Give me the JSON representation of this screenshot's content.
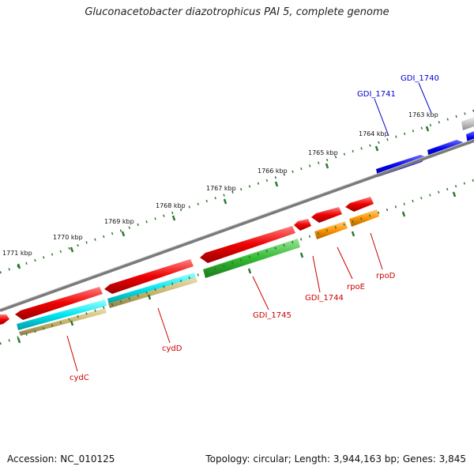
{
  "header": {
    "title": "Gluconacetobacter diazotrophicus PAI 5, complete genome"
  },
  "footer": {
    "accession": "Accession: NC_010125",
    "topology": "Topology: circular; Length: 3,944,163 bp; Genes: 3,845"
  },
  "scale_labels": [
    "1763 kbp",
    "1764 kbp",
    "1765 kbp",
    "1766 kbp",
    "1767 kbp",
    "1768 kbp",
    "1769 kbp",
    "1770 kbp",
    "1771 kbp"
  ],
  "gene_labels": {
    "gdi1740": "GDI_1740",
    "gdi1741": "GDI_1741",
    "gdi1744": "GDI_1744",
    "gdi1745": "GDI_1745",
    "rpoe": "rpoE",
    "rpod": "rpoD",
    "cydd": "cydD",
    "cydc": "cydC"
  },
  "colors": {
    "forward_cds": "#0000ee",
    "reverse_cds": "#ee0000",
    "backbone": "#7a7a7a",
    "tick": "#2a7a2a",
    "cyan": "#00e5f0",
    "green": "#33bb33",
    "orange": "#ff9500",
    "tan": "#c8b46e",
    "gray": "#c0c0c0"
  }
}
